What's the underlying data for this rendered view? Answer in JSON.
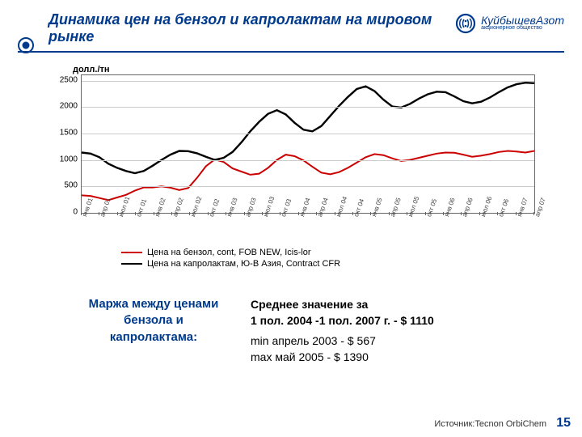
{
  "brand_color": "#003a8c",
  "title": "Динамика цен на бензол и капролактам на мировом рынке",
  "logo": {
    "main": "КуйбышевАзот",
    "sub": "акционерное общество"
  },
  "y_axis_label": "долл./тн",
  "chart": {
    "type": "line",
    "ylim": [
      0,
      2600
    ],
    "ytick_step": 500,
    "x_labels": [
      "янв 01",
      "апр 01",
      "июл 01",
      "окт 01",
      "янв 02",
      "апр 02",
      "июл 02",
      "окт 02",
      "янв 03",
      "апр 03",
      "июл 03",
      "окт 03",
      "янв 04",
      "апр 04",
      "июл 04",
      "окт 04",
      "янв 05",
      "апр 05",
      "июл 05",
      "окт 05",
      "янв 06",
      "апр 06",
      "июл 06",
      "окт 06",
      "янв 07",
      "апр 07"
    ],
    "grid_color": "#cccccc",
    "border_color": "#666666",
    "background_color": "#ffffff",
    "series": [
      {
        "name": "Цена на бензол, cont, FOB NEW,    Icis-lor",
        "color": "#cc0000",
        "width": 2,
        "values": [
          330,
          320,
          280,
          240,
          290,
          340,
          420,
          480,
          480,
          500,
          475,
          430,
          470,
          660,
          880,
          1010,
          960,
          840,
          780,
          720,
          740,
          850,
          1000,
          1100,
          1070,
          990,
          870,
          760,
          730,
          770,
          850,
          950,
          1050,
          1110,
          1090,
          1030,
          980,
          1000,
          1040,
          1080,
          1120,
          1140,
          1135,
          1100,
          1060,
          1080,
          1110,
          1150,
          1170,
          1160,
          1140,
          1170
        ]
      },
      {
        "name": "Цена на капролактам, Ю-В Азия, Contract  CFR",
        "color": "#000000",
        "width": 2.4,
        "values": [
          1140,
          1120,
          1050,
          930,
          850,
          790,
          750,
          790,
          890,
          1000,
          1100,
          1170,
          1165,
          1125,
          1060,
          1000,
          1040,
          1150,
          1330,
          1540,
          1720,
          1870,
          1940,
          1860,
          1700,
          1570,
          1540,
          1640,
          1830,
          2020,
          2190,
          2340,
          2390,
          2300,
          2140,
          2010,
          1990,
          2060,
          2160,
          2240,
          2290,
          2280,
          2200,
          2110,
          2070,
          2100,
          2180,
          2280,
          2370,
          2430,
          2460,
          2450
        ]
      }
    ]
  },
  "legend": [
    {
      "label": "Цена на бензол, cont, FOB NEW,    Icis-lor",
      "color": "#cc0000",
      "width": 2
    },
    {
      "label": "Цена на капролактам, Ю-В Азия, Contract  CFR",
      "color": "#000000",
      "width": 2.4
    }
  ],
  "margin_label": "Маржа между ценами бензола и капролактама:",
  "margin_lines": {
    "avg_label": "Среднее значение за",
    "avg_period": " 1 пол. 2004 -1 пол.  2007 г. -   $ 1110",
    "min": "min    апрель 2003               -   $ 567",
    "max": "max   май 2005                    -    $ 1390"
  },
  "source": "Источник:Tecnon OrbiChem",
  "page_number": "15"
}
